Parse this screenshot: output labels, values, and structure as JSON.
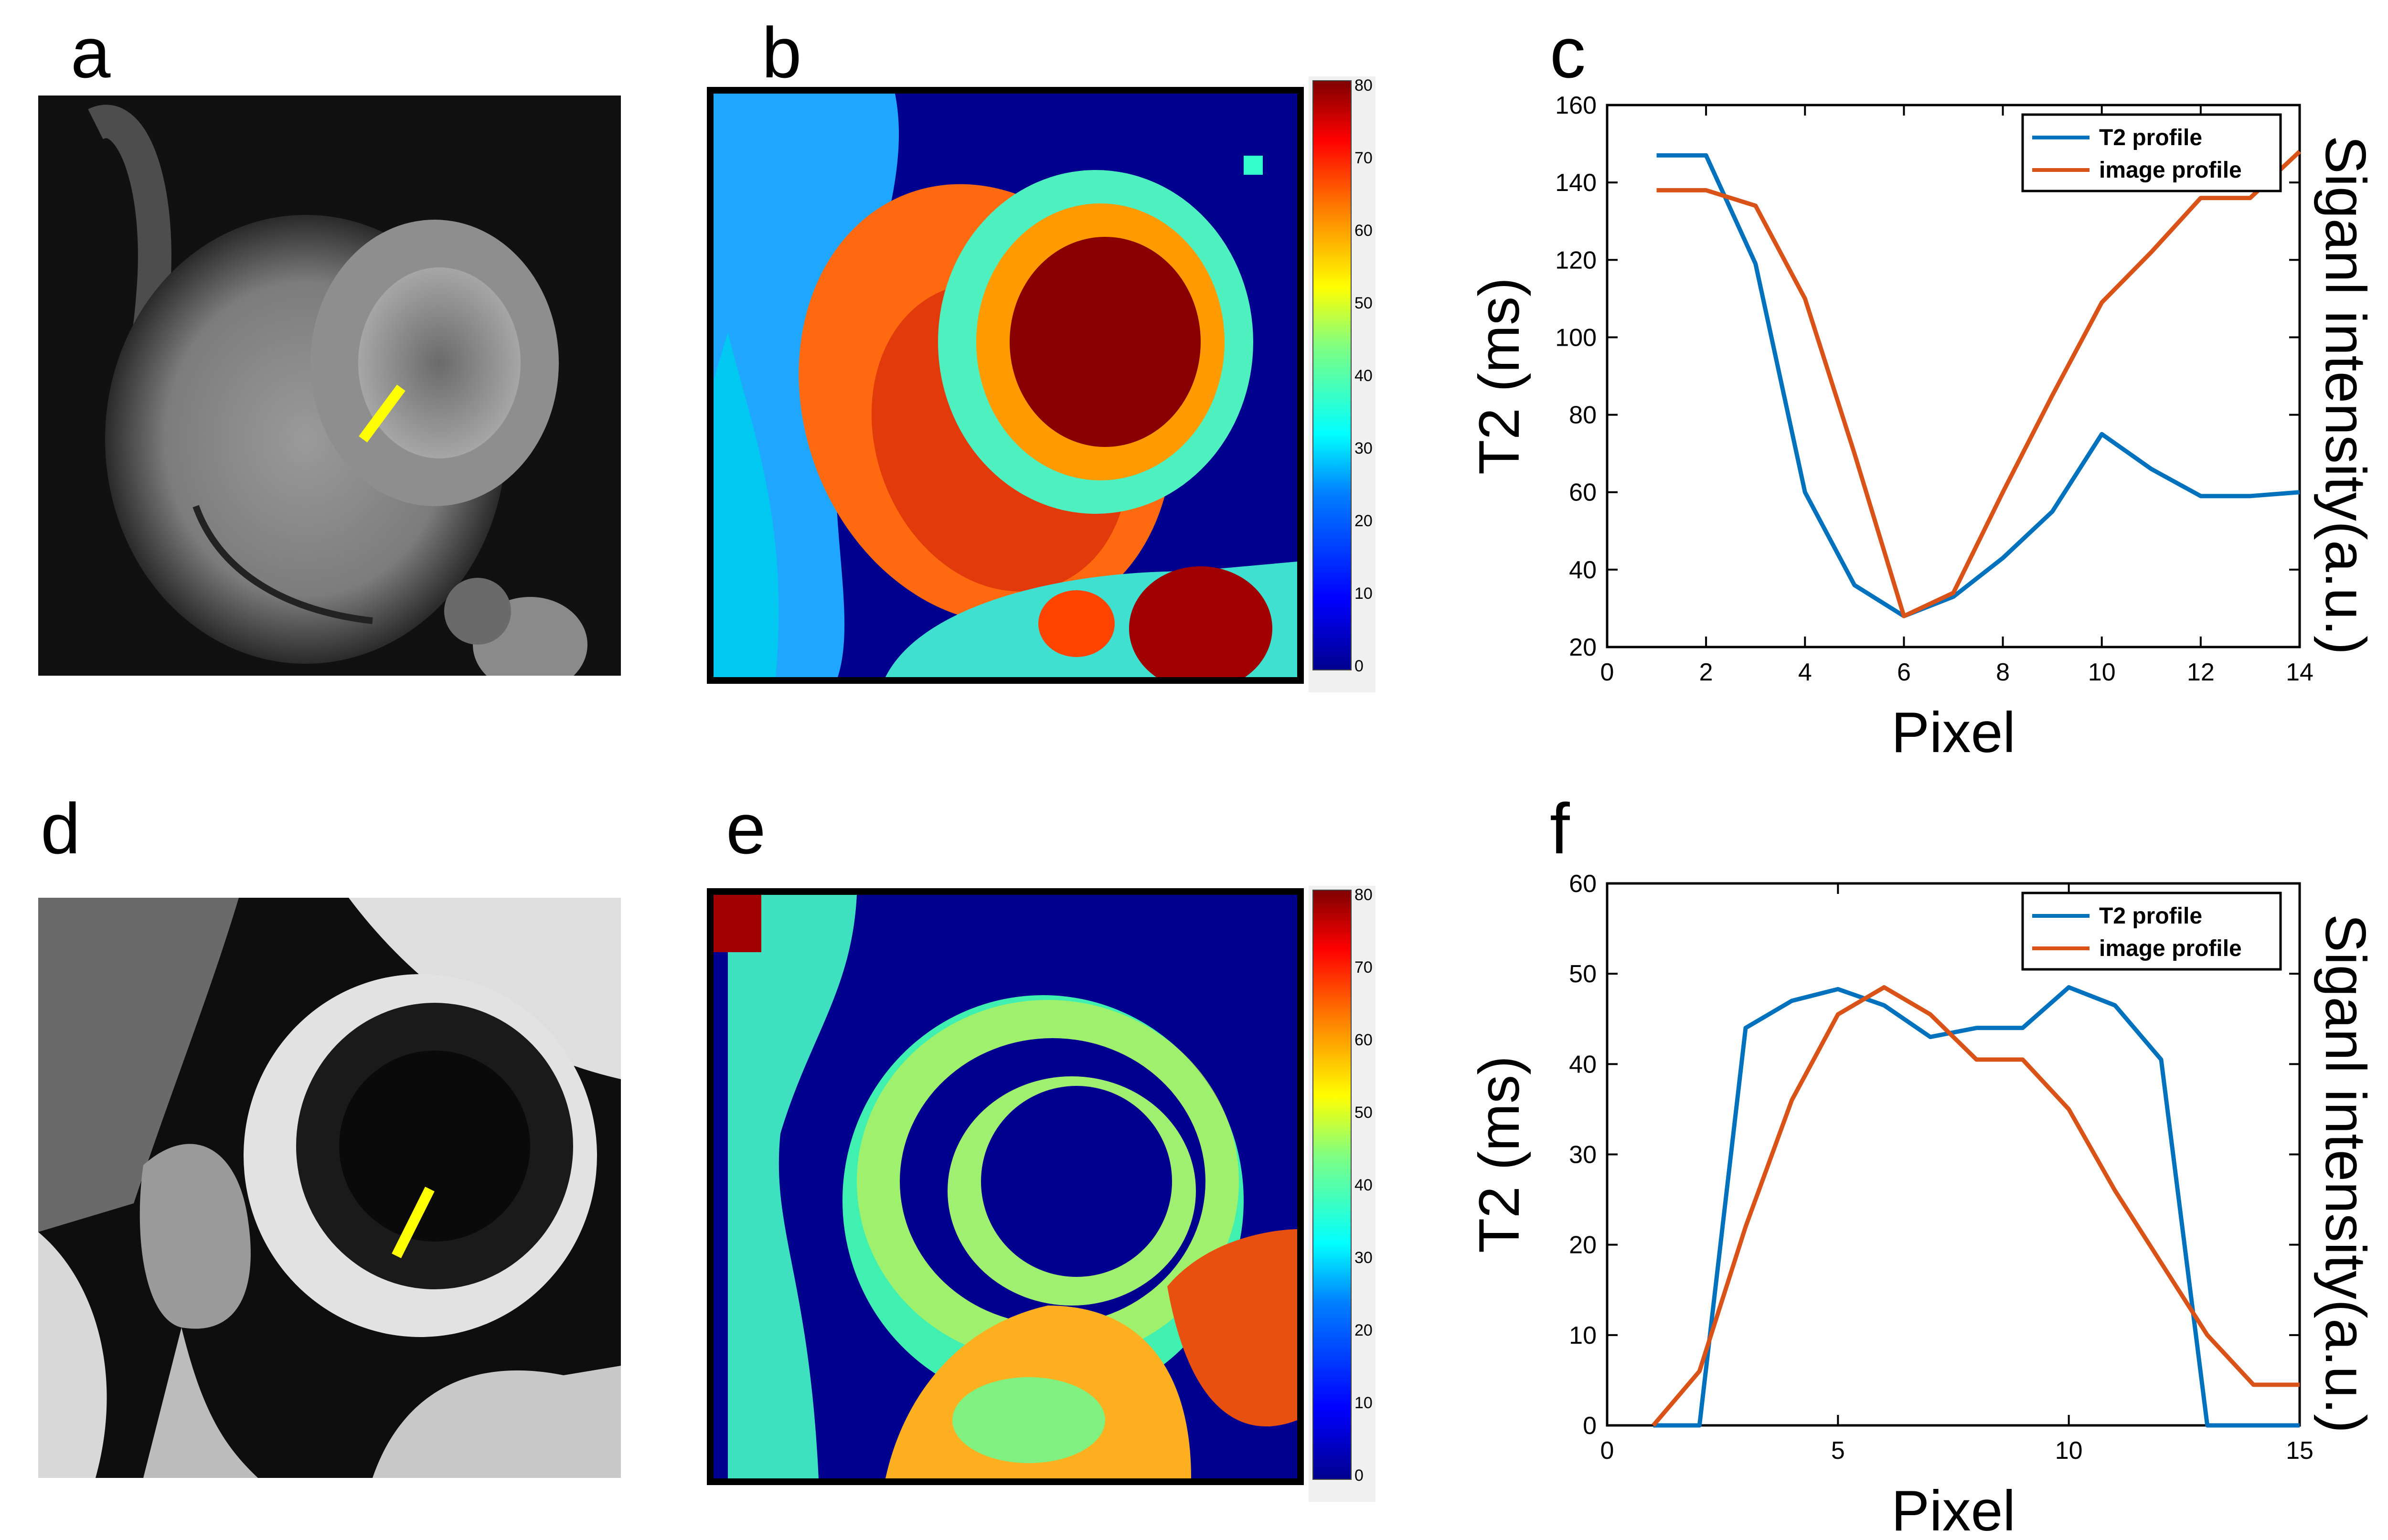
{
  "figure": {
    "panel_labels": [
      "a",
      "b",
      "c",
      "d",
      "e",
      "f"
    ],
    "colorbar_ticks": [
      "0",
      "10",
      "20",
      "30",
      "40",
      "50",
      "60",
      "70",
      "80"
    ],
    "colors": {
      "t2_line": "#0072BD",
      "image_line": "#D95319",
      "marker": "#FFFF00",
      "jet_low": "#00008F",
      "jet_high": "#800000"
    }
  },
  "chart_data": [
    {
      "type": "line",
      "panel": "c",
      "xlabel": "Pixel",
      "ylabel": "T2 (ms)",
      "ylabel_right": "Siganl intensity(a.u.)",
      "xlim": [
        0,
        14
      ],
      "ylim": [
        20,
        160
      ],
      "xticks": [
        0,
        2,
        4,
        6,
        8,
        10,
        12,
        14
      ],
      "yticks": [
        20,
        40,
        60,
        80,
        100,
        120,
        140,
        160
      ],
      "legend_position": "top-right",
      "series": [
        {
          "name": "T2 profile",
          "color": "#0072BD",
          "x": [
            1,
            2,
            3,
            4,
            5,
            6,
            7,
            8,
            9,
            10,
            11,
            12,
            13,
            14
          ],
          "y": [
            147,
            147,
            119,
            60,
            36,
            28,
            33,
            43,
            55,
            75,
            66,
            59,
            59,
            60
          ]
        },
        {
          "name": "image profile",
          "color": "#D95319",
          "x": [
            1,
            2,
            3,
            4,
            5,
            6,
            7,
            8,
            9,
            10,
            11,
            12,
            13,
            14
          ],
          "y": [
            138,
            138,
            134,
            110,
            70,
            28,
            34,
            60,
            85,
            109,
            122,
            136,
            136,
            148
          ]
        }
      ]
    },
    {
      "type": "line",
      "panel": "f",
      "xlabel": "Pixel",
      "ylabel": "T2 (ms)",
      "ylabel_right": "Siganl intensity(a.u.)",
      "xlim": [
        0,
        15
      ],
      "ylim": [
        0,
        60
      ],
      "xticks": [
        0,
        5,
        10,
        15
      ],
      "yticks": [
        0,
        10,
        20,
        30,
        40,
        50,
        60
      ],
      "legend_position": "top-right",
      "series": [
        {
          "name": "T2 profile",
          "color": "#0072BD",
          "x": [
            1,
            2,
            3,
            4,
            5,
            6,
            7,
            8,
            9,
            10,
            11,
            12,
            13,
            14,
            15
          ],
          "y": [
            0,
            0,
            44,
            47,
            48.3,
            46.5,
            43,
            44,
            44,
            48.5,
            46.5,
            40.5,
            0,
            0,
            0
          ]
        },
        {
          "name": "image profile",
          "color": "#D95319",
          "x": [
            1,
            2,
            3,
            4,
            5,
            6,
            7,
            8,
            9,
            10,
            11,
            12,
            13,
            14,
            15
          ],
          "y": [
            0,
            6,
            22,
            36,
            45.5,
            48.5,
            45.5,
            40.5,
            40.5,
            35,
            26,
            18,
            10,
            4.5,
            4.5
          ]
        }
      ]
    }
  ]
}
